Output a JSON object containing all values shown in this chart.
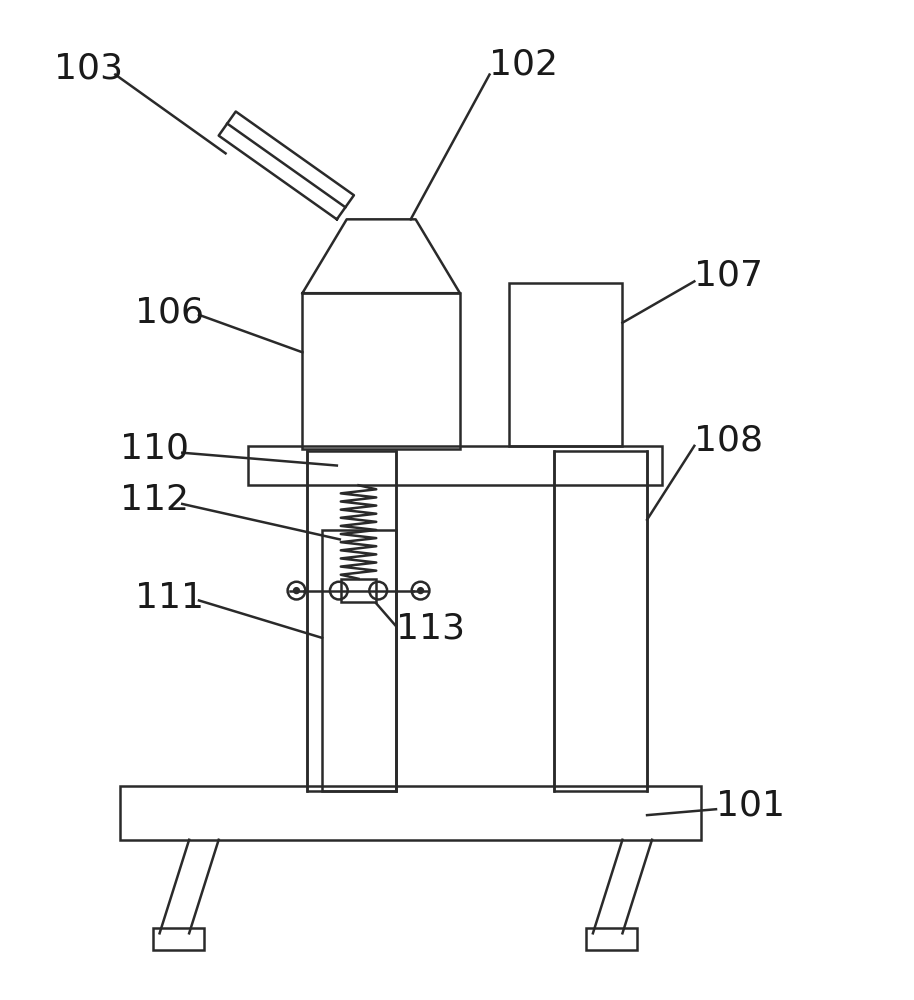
{
  "bg_color": "#ffffff",
  "line_color": "#2a2a2a",
  "lw": 1.8,
  "fig_width": 9.14,
  "fig_height": 10.0,
  "label_fontsize": 26
}
